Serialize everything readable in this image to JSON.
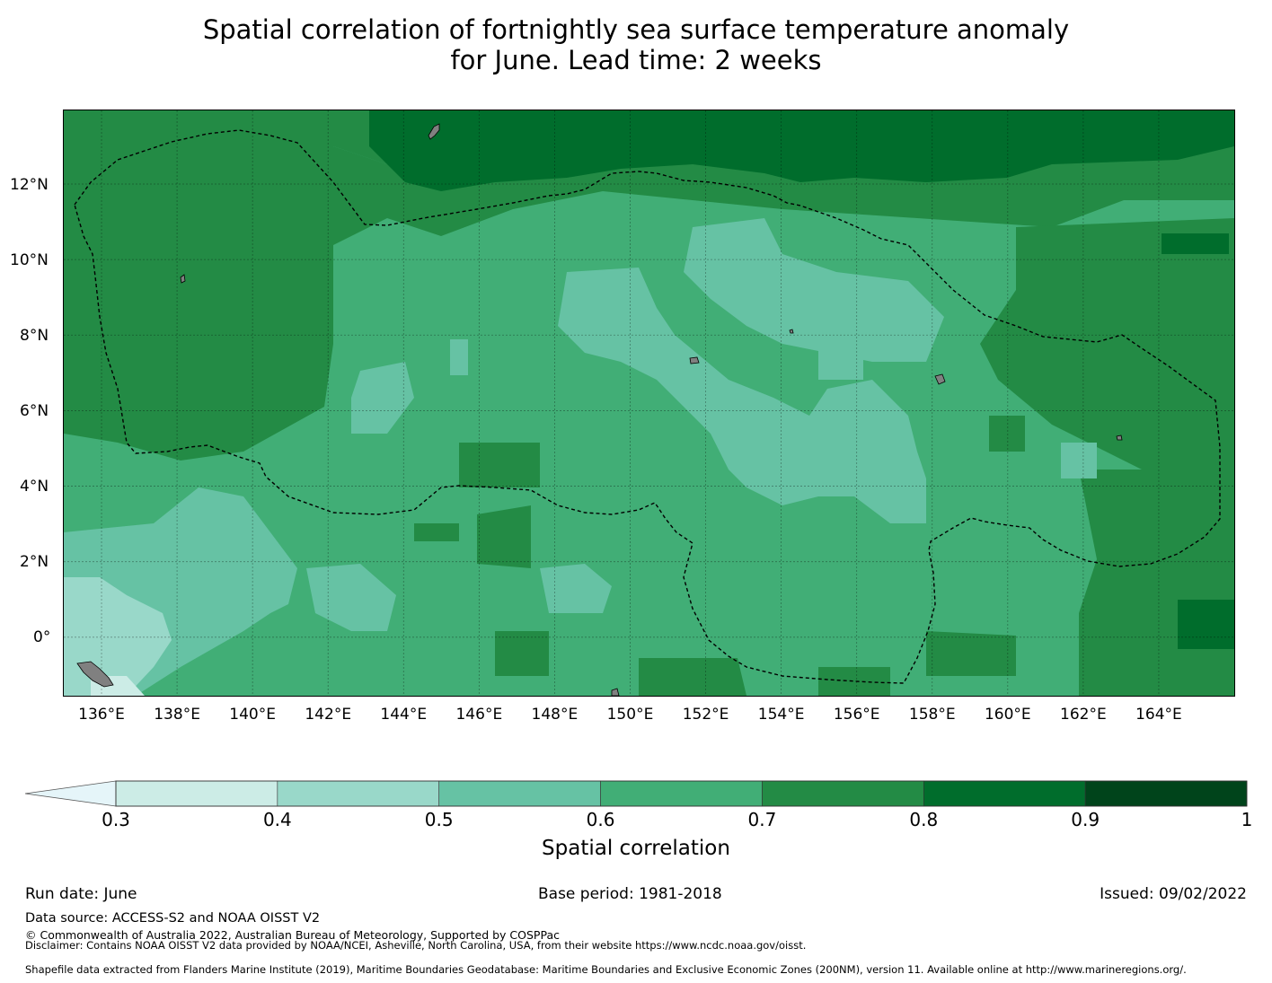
{
  "title": {
    "line1": "Spatial correlation of fortnightly sea surface temperature anomaly",
    "line2": "for June. Lead time: 2 weeks"
  },
  "map": {
    "lon_labels": [
      "136°E",
      "138°E",
      "140°E",
      "142°E",
      "144°E",
      "146°E",
      "148°E",
      "150°E",
      "152°E",
      "154°E",
      "156°E",
      "158°E",
      "160°E",
      "162°E",
      "164°E"
    ],
    "lat_labels": [
      "12°N",
      "10°N",
      "8°N",
      "6°N",
      "4°N",
      "2°N",
      "0°"
    ],
    "lon_range": [
      135,
      166
    ],
    "lat_range": [
      -1.55,
      13.95
    ],
    "land_color": "#808080",
    "boundary_style": "dashed"
  },
  "colorbar": {
    "ticks": [
      "0.3",
      "0.4",
      "0.5",
      "0.6",
      "0.7",
      "0.8",
      "0.9",
      "1"
    ],
    "colors": [
      "#ccece6",
      "#99d8c9",
      "#66c2a4",
      "#41ae76",
      "#238b45",
      "#006d2c",
      "#00441b"
    ],
    "under_color": "#e5f5f9",
    "extend": "min",
    "label": "Spatial correlation"
  },
  "footer": {
    "run_date": "Run date: June",
    "base_period": "Base period: 1981-2018",
    "issued": "Issued: 09/02/2022",
    "data_source": "Data source: ACCESS-S2 and NOAA OISST V2",
    "copyright": "© Commonwealth of Australia 2022, Australian Bureau of Meteorology, Supported by COSPPac",
    "disclaimer": "Disclaimer: Contains NOAA OISST V2 data provided by NOAA/NCEI, Asheville, North Carolina, USA, from their website https://www.ncdc.noaa.gov/oisst.",
    "shapefile": "Shapefile data extracted from Flanders Marine Institute (2019), Maritime Boundaries Geodatabase: Maritime Boundaries and Exclusive Economic Zones (200NM), version 11. Available online at http://www.marineregions.org/."
  }
}
